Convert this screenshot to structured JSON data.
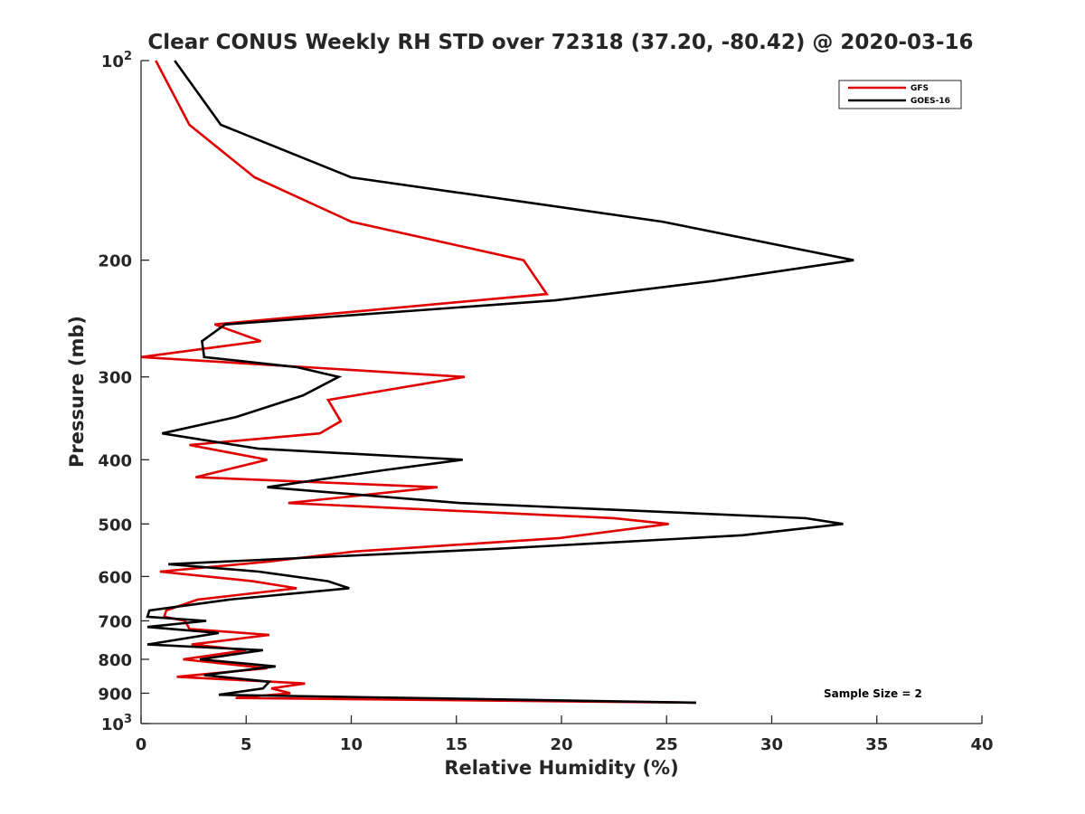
{
  "chart_data": {
    "type": "line",
    "title": "Clear CONUS Weekly RH STD over 72318 (37.20, -80.42) @ 2020-03-16",
    "xlabel": "Relative Humidity (%)",
    "ylabel": "Pressure (mb)",
    "xlim": [
      0,
      40
    ],
    "ylim": [
      100,
      1000
    ],
    "y_scale": "log",
    "y_reversed": true,
    "grid": false,
    "legend_position": "top-right",
    "x_ticks": [
      "0",
      "5",
      "10",
      "15",
      "20",
      "25",
      "30",
      "35",
      "40"
    ],
    "y_ticks": [
      {
        "value": 100,
        "base": "10",
        "exp": "2"
      },
      {
        "value": 200,
        "label": "200"
      },
      {
        "value": 300,
        "label": "300"
      },
      {
        "value": 400,
        "label": "400"
      },
      {
        "value": 500,
        "label": "500"
      },
      {
        "value": 600,
        "label": "600"
      },
      {
        "value": 700,
        "label": "700"
      },
      {
        "value": 800,
        "label": "800"
      },
      {
        "value": 900,
        "label": "900"
      },
      {
        "value": 1000,
        "base": "10",
        "exp": "3"
      }
    ],
    "annotation": "Sample Size = 2",
    "series": [
      {
        "name": "GFS",
        "color": "#e00000",
        "points": [
          [
            0.7,
            100
          ],
          [
            2.3,
            125
          ],
          [
            5.4,
            150
          ],
          [
            10.0,
            175
          ],
          [
            18.2,
            200
          ],
          [
            19.3,
            225
          ],
          [
            3.5,
            250
          ],
          [
            5.7,
            265
          ],
          [
            0.0,
            280
          ],
          [
            15.4,
            300
          ],
          [
            8.9,
            325
          ],
          [
            9.5,
            350
          ],
          [
            8.5,
            365
          ],
          [
            2.3,
            380
          ],
          [
            6.0,
            400
          ],
          [
            2.6,
            425
          ],
          [
            14.1,
            440
          ],
          [
            7.0,
            465
          ],
          [
            22.5,
            490
          ],
          [
            25.1,
            500
          ],
          [
            19.9,
            525
          ],
          [
            10.2,
            550
          ],
          [
            6.0,
            570
          ],
          [
            0.9,
            590
          ],
          [
            5.3,
            610
          ],
          [
            7.4,
            625
          ],
          [
            2.7,
            650
          ],
          [
            1.2,
            675
          ],
          [
            1.1,
            690
          ],
          [
            2.1,
            700
          ],
          [
            2.3,
            720
          ],
          [
            6.1,
            735
          ],
          [
            2.4,
            760
          ],
          [
            5.0,
            775
          ],
          [
            2.0,
            800
          ],
          [
            6.0,
            825
          ],
          [
            1.7,
            850
          ],
          [
            7.8,
            870
          ],
          [
            6.2,
            885
          ],
          [
            7.1,
            900
          ],
          [
            4.5,
            915
          ],
          [
            26.4,
            930
          ]
        ]
      },
      {
        "name": "GOES-16",
        "color": "#000000",
        "points": [
          [
            1.6,
            100
          ],
          [
            3.8,
            125
          ],
          [
            10.0,
            150
          ],
          [
            24.8,
            175
          ],
          [
            33.9,
            200
          ],
          [
            27.2,
            215
          ],
          [
            19.7,
            230
          ],
          [
            4.0,
            250
          ],
          [
            2.9,
            265
          ],
          [
            3.0,
            280
          ],
          [
            7.4,
            290
          ],
          [
            9.4,
            300
          ],
          [
            7.7,
            320
          ],
          [
            4.5,
            345
          ],
          [
            1.0,
            365
          ],
          [
            5.6,
            385
          ],
          [
            15.3,
            400
          ],
          [
            11.5,
            415
          ],
          [
            6.0,
            440
          ],
          [
            15.2,
            465
          ],
          [
            31.6,
            490
          ],
          [
            33.4,
            500
          ],
          [
            28.6,
            520
          ],
          [
            16.9,
            545
          ],
          [
            1.3,
            575
          ],
          [
            5.6,
            590
          ],
          [
            8.9,
            610
          ],
          [
            9.9,
            625
          ],
          [
            4.2,
            650
          ],
          [
            0.4,
            675
          ],
          [
            0.3,
            690
          ],
          [
            3.1,
            700
          ],
          [
            0.3,
            715
          ],
          [
            3.7,
            730
          ],
          [
            0.3,
            760
          ],
          [
            5.8,
            775
          ],
          [
            2.8,
            800
          ],
          [
            6.4,
            820
          ],
          [
            3.0,
            845
          ],
          [
            6.1,
            865
          ],
          [
            5.8,
            885
          ],
          [
            3.7,
            905
          ],
          [
            26.4,
            930
          ]
        ]
      }
    ]
  }
}
